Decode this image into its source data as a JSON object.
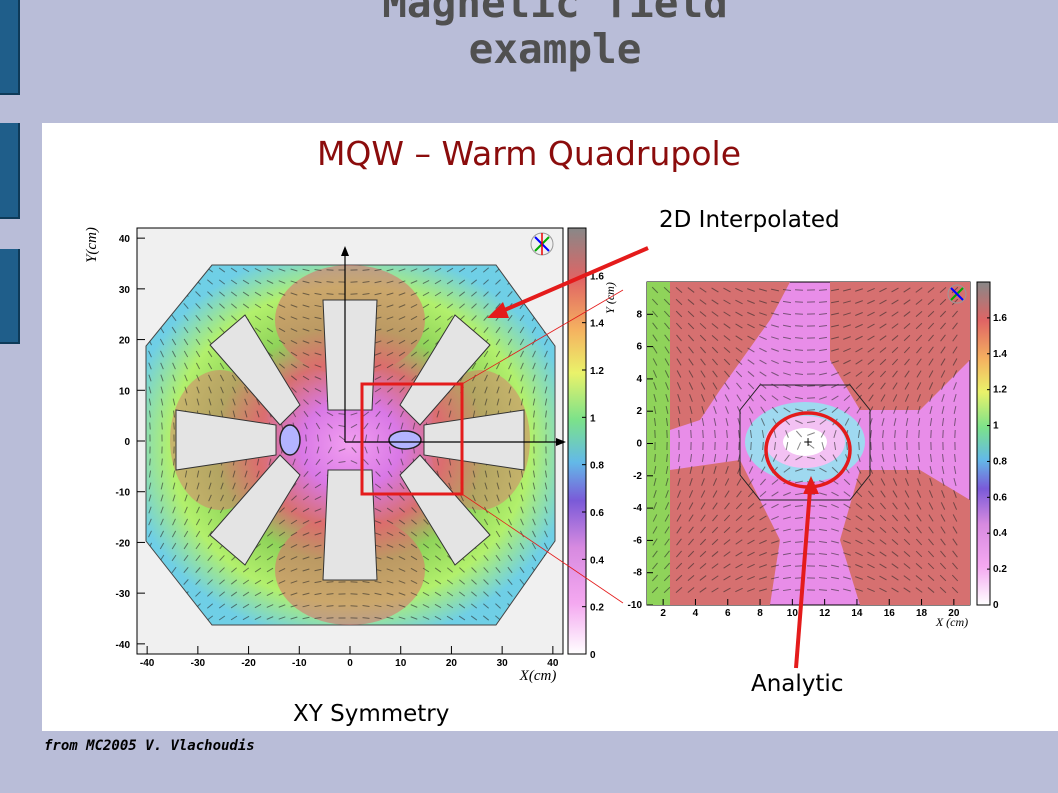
{
  "slide": {
    "title": "Magnetic field\nexample",
    "subtitle": "MQW – Warm Quadrupole",
    "footer": "from MC2005 V. Vlachoudis",
    "labels": {
      "interpolated": "2D Interpolated",
      "analytic": "Analytic",
      "symmetry": "XY Symmetry"
    },
    "accent_color": "#e41b1b"
  },
  "chart_data": [
    {
      "type": "heatmap",
      "title": "",
      "xlabel": "X(cm)",
      "ylabel": "Y(cm)",
      "xlim": [
        -42,
        42
      ],
      "ylim": [
        -42,
        42
      ],
      "x_ticks": [
        "-40",
        "-30",
        "-20",
        "-10",
        "0",
        "10",
        "20",
        "30",
        "40"
      ],
      "y_ticks": [
        "40",
        "30",
        "20",
        "10",
        "0",
        "-10",
        "-20",
        "-30",
        "-40"
      ],
      "colorbar_ticks": [
        "1.6",
        "1.4",
        "1.2",
        "1",
        "0.8",
        "0.6",
        "0.4",
        "0.2",
        "0"
      ],
      "colorbar_range": [
        0,
        1.8
      ],
      "zoom_box": {
        "x": [
          3,
          22
        ],
        "y": [
          -11,
          11
        ]
      }
    },
    {
      "type": "heatmap",
      "title": "",
      "xlabel": "X (cm)",
      "ylabel": "Y (cm)",
      "xlim": [
        1,
        21
      ],
      "ylim": [
        -10,
        10
      ],
      "x_ticks": [
        "2",
        "4",
        "6",
        "8",
        "10",
        "12",
        "14",
        "16",
        "18",
        "20"
      ],
      "y_ticks": [
        "8",
        "6",
        "4",
        "2",
        "0",
        "-2",
        "-4",
        "-6",
        "-8",
        "-10"
      ],
      "colorbar_ticks": [
        "1.6",
        "1.4",
        "1.2",
        "1",
        "0.8",
        "0.6",
        "0.4",
        "0.2",
        "0"
      ],
      "colorbar_range": [
        0,
        1.8
      ]
    }
  ]
}
